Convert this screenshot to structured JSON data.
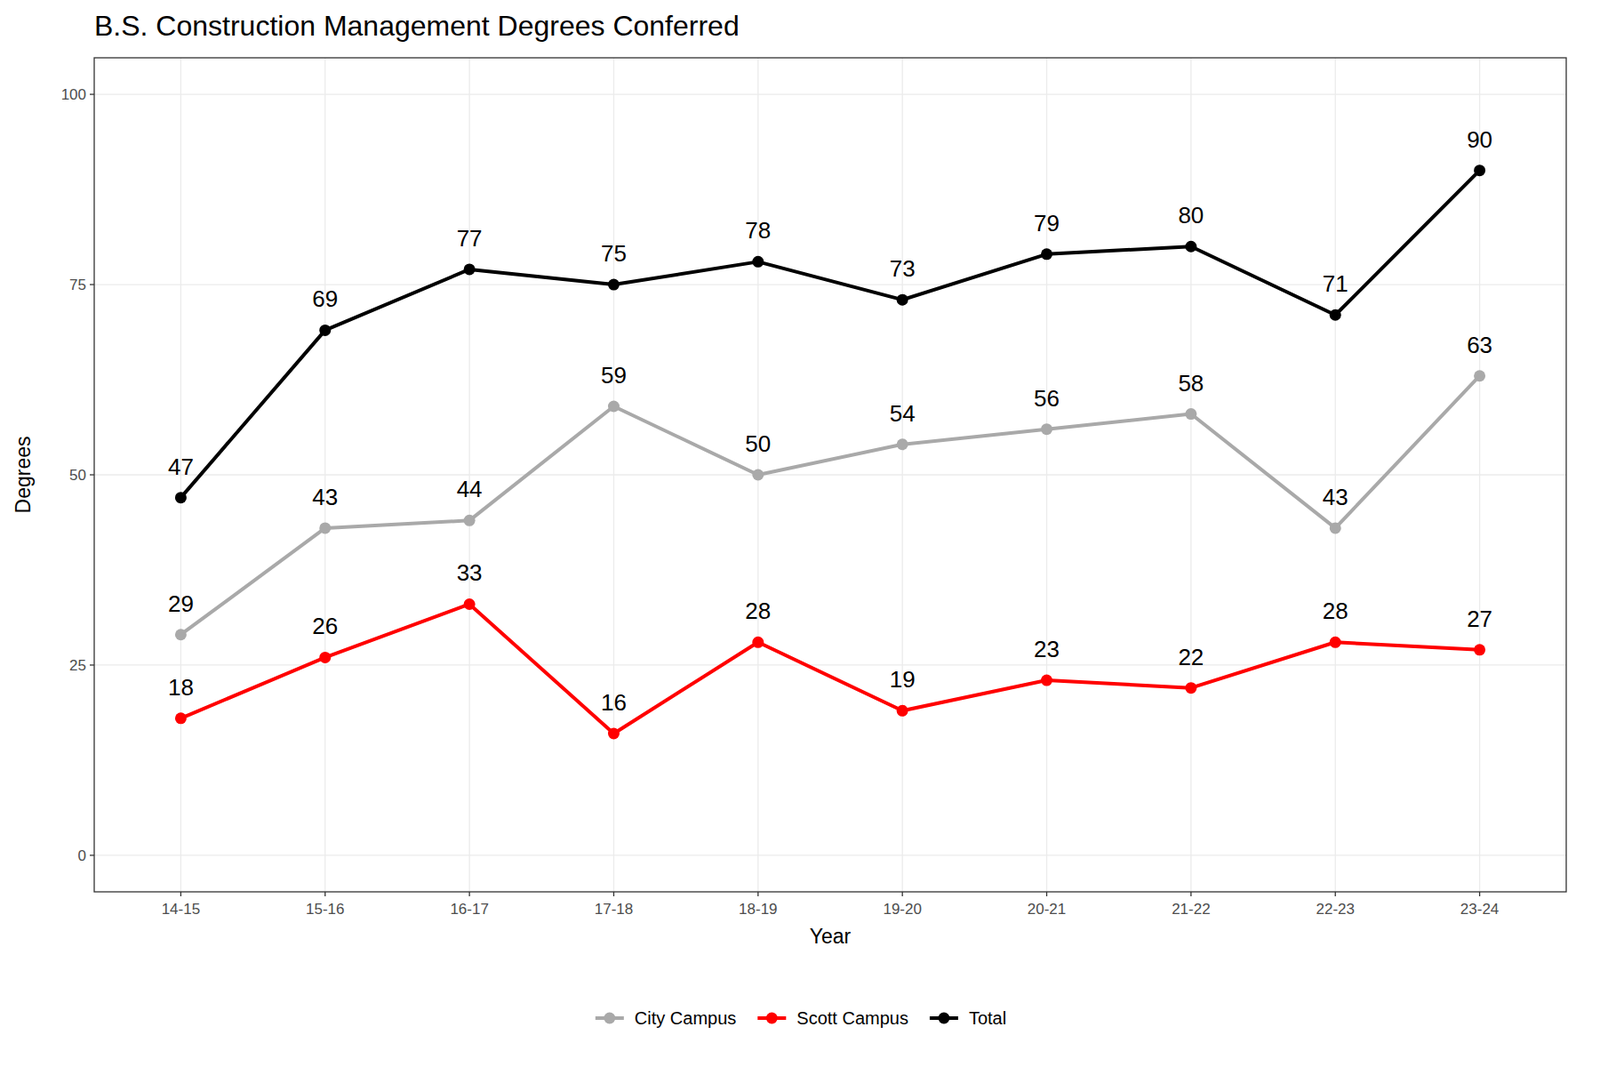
{
  "chart_data": {
    "type": "line",
    "title": "B.S. Construction Management Degrees Conferred",
    "x_label": "Year",
    "y_label": "Degrees",
    "categories": [
      "14-15",
      "15-16",
      "16-17",
      "17-18",
      "18-19",
      "19-20",
      "20-21",
      "21-22",
      "22-23",
      "23-24"
    ],
    "series": [
      {
        "name": "City Campus",
        "color": "#a9a9a9",
        "marker": "circle",
        "values": [
          29,
          43,
          44,
          59,
          50,
          54,
          56,
          58,
          43,
          63
        ]
      },
      {
        "name": "Scott Campus",
        "color": "#ff0000",
        "marker": "circle",
        "values": [
          18,
          26,
          33,
          16,
          28,
          19,
          23,
          22,
          28,
          27
        ]
      },
      {
        "name": "Total",
        "color": "#000000",
        "marker": "circle",
        "values": [
          47,
          69,
          77,
          75,
          78,
          73,
          79,
          80,
          71,
          90
        ]
      }
    ],
    "ylim": [
      -4.8,
      104.8
    ],
    "yticks": [
      0,
      25,
      50,
      75,
      100
    ],
    "grid": true,
    "legend": "bottom",
    "data_labels": true
  }
}
